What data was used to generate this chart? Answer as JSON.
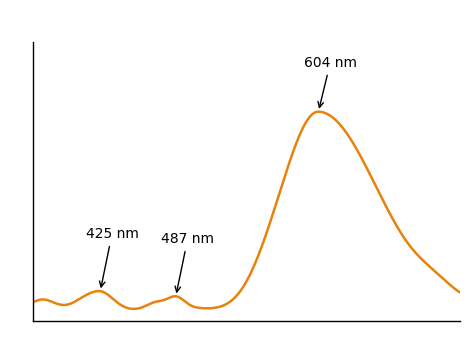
{
  "line_color": "#E8820C",
  "background_color": "#ffffff",
  "annotation_color": "#000000",
  "xlim": [
    370,
    720
  ],
  "ylim": [
    0,
    1.0
  ],
  "line_width": 1.8,
  "font_size": 10,
  "figsize": [
    4.74,
    3.49
  ],
  "dpi": 100
}
